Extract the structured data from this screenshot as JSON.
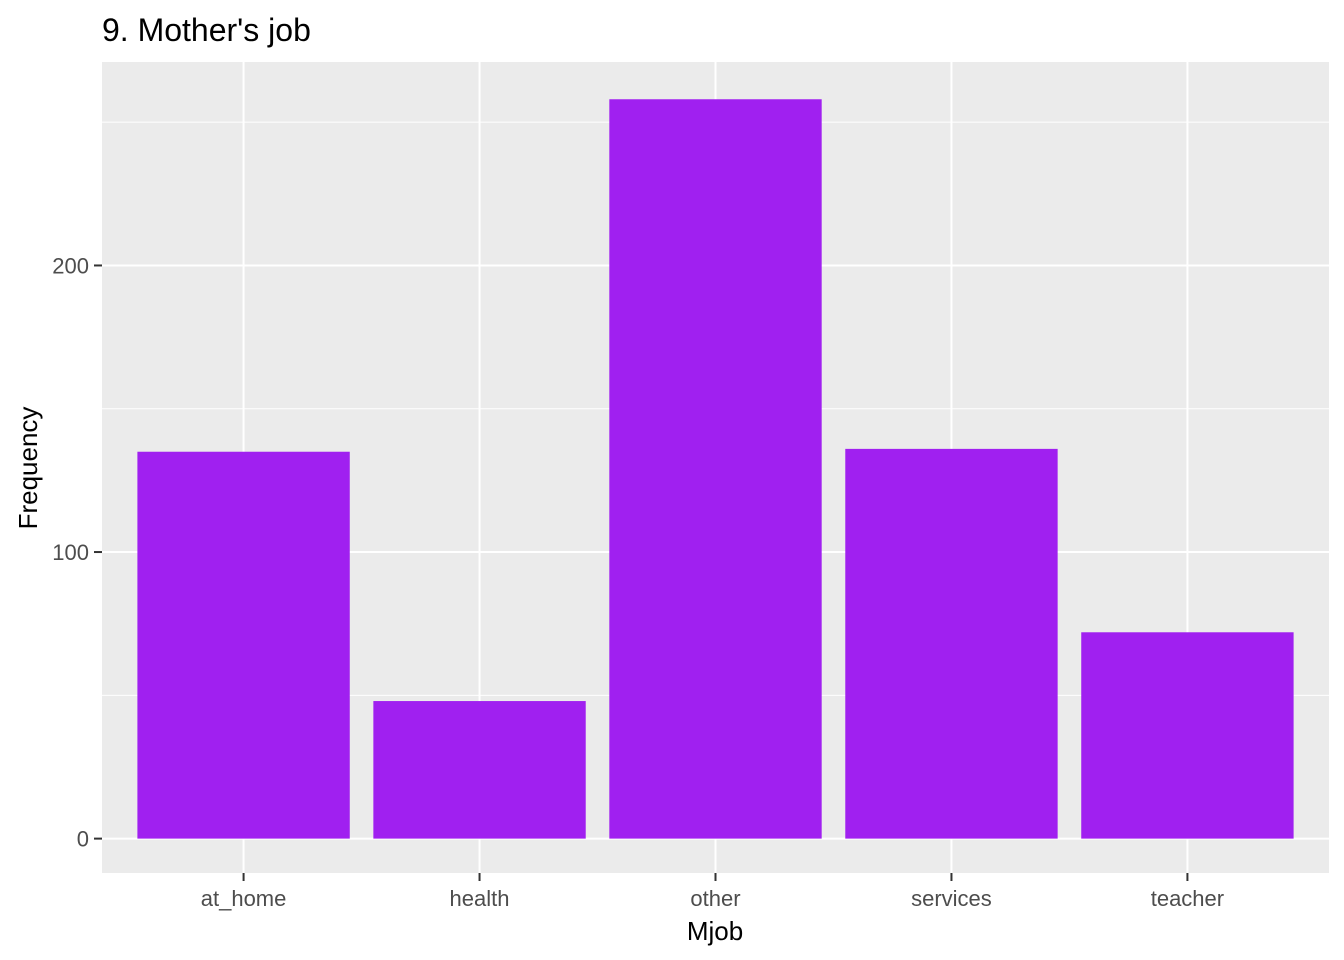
{
  "chart_data": {
    "type": "bar",
    "title": "9. Mother's job",
    "xlabel": "Mjob",
    "ylabel": "Frequency",
    "categories": [
      "at_home",
      "health",
      "other",
      "services",
      "teacher"
    ],
    "values": [
      135,
      48,
      258,
      136,
      72
    ],
    "ylim": [
      -12,
      271
    ],
    "yticks": [
      0,
      100,
      200
    ],
    "y_minor_ticks": [
      50,
      150,
      250
    ],
    "grid": true,
    "legend": "none",
    "colors": {
      "bar": "#A020F0",
      "panel_background": "#EBEBEB",
      "grid": "#FFFFFF",
      "tick_text": "#4D4D4D",
      "tick_mark": "#333333"
    }
  }
}
